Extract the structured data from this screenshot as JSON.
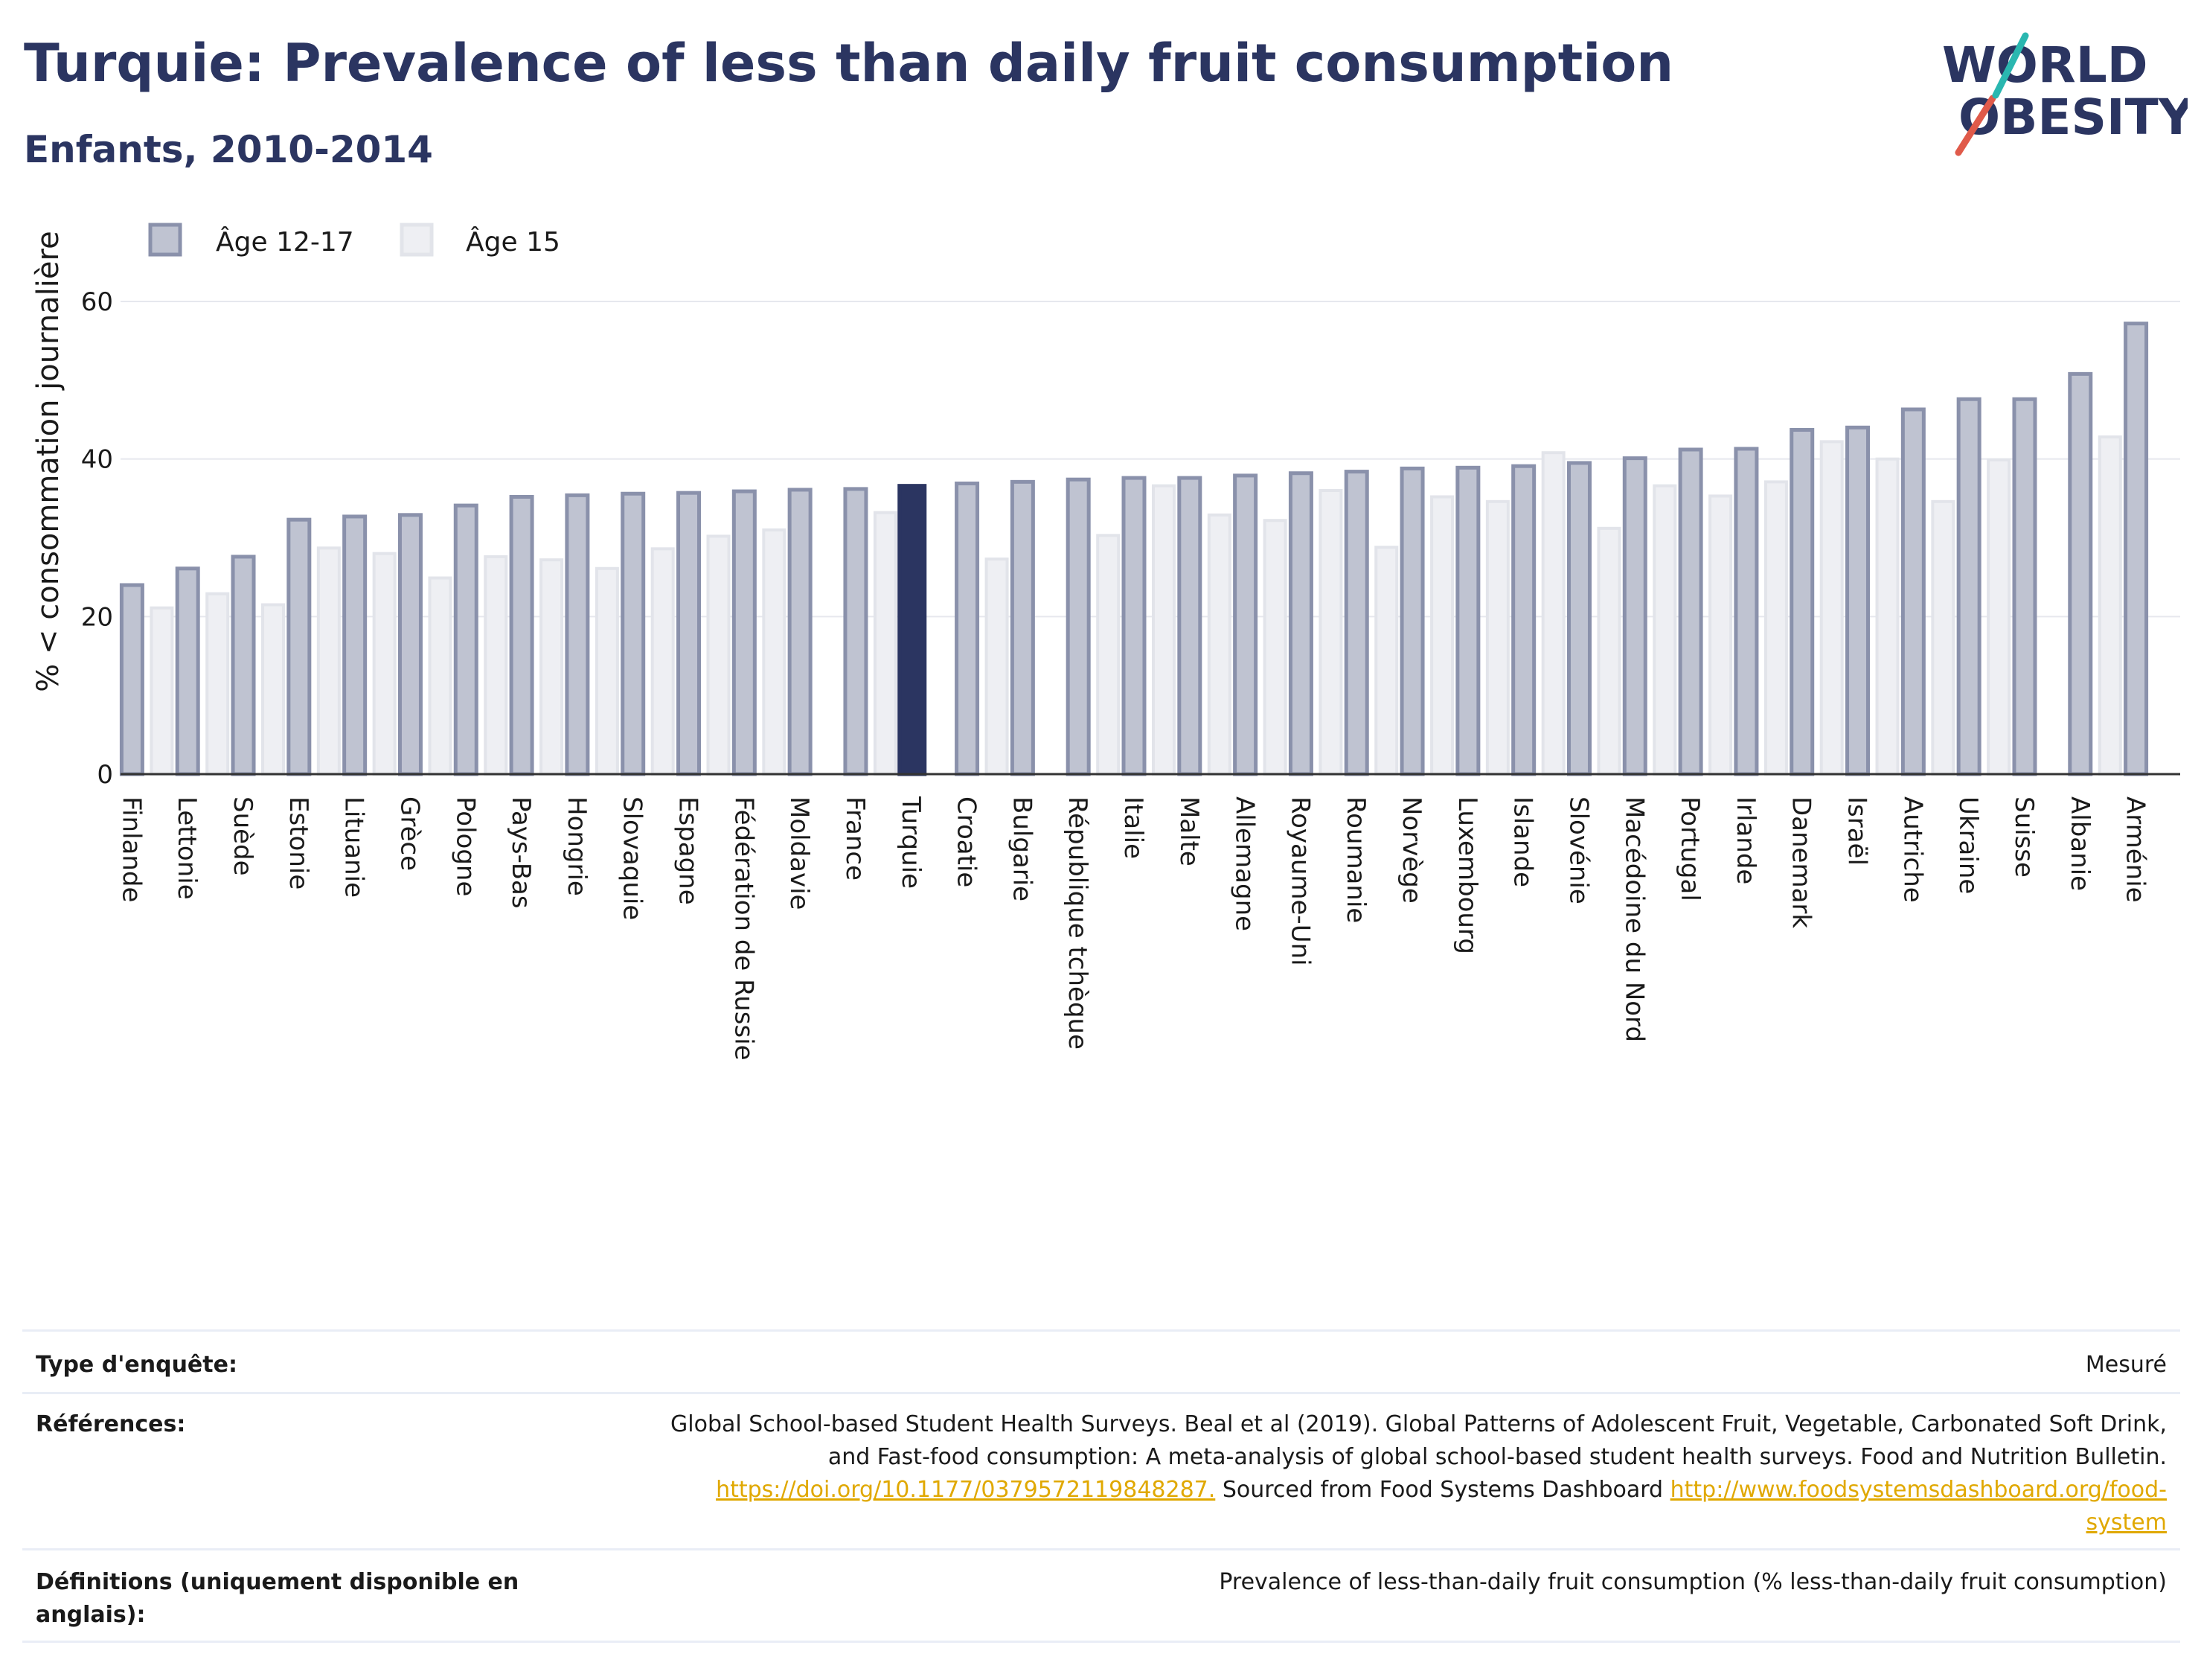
{
  "header": {
    "title": "Turquie: Prevalence of less than daily fruit consumption",
    "subtitle": "Enfants, 2010-2014"
  },
  "logo": {
    "line1": "WORLD",
    "line2": "OBESITY"
  },
  "colors": {
    "series1_fill": "#bfc3d1",
    "series1_stroke": "#8a91ab",
    "series2_fill": "#eeeff3",
    "series2_stroke": "#e2e4ea",
    "highlight": "#2b3561",
    "axis": "#333333",
    "grid": "#e6e8ee"
  },
  "chart_data": {
    "type": "bar",
    "title": "Turquie: Prevalence of less than daily fruit consumption",
    "subtitle": "Enfants, 2010-2014",
    "ylabel": "% < consommation journalière",
    "xlabel": "",
    "ylim": [
      0,
      60
    ],
    "yticks": [
      0,
      20,
      40,
      60
    ],
    "grid": true,
    "legend_position": "top-left",
    "highlight_category": "Turquie",
    "categories": [
      "Finlande",
      "Lettonie",
      "Suède",
      "Estonie",
      "Lituanie",
      "Grèce",
      "Pologne",
      "Pays-Bas",
      "Hongrie",
      "Slovaquie",
      "Espagne",
      "Fédération de Russie",
      "Moldavie",
      "France",
      "Turquie",
      "Croatie",
      "Bulgarie",
      "République tchèque",
      "Italie",
      "Malte",
      "Allemagne",
      "Royaume-Uni",
      "Roumanie",
      "Norvège",
      "Luxembourg",
      "Islande",
      "Slovénie",
      "Macédoine du Nord",
      "Portugal",
      "Irlande",
      "Danemark",
      "Israël",
      "Autriche",
      "Ukraine",
      "Suisse",
      "Albanie",
      "Arménie"
    ],
    "series": [
      {
        "name": "Âge 12-17",
        "values": [
          24.0,
          26.1,
          27.6,
          32.3,
          32.7,
          32.9,
          34.1,
          35.2,
          35.4,
          35.6,
          35.7,
          35.9,
          36.1,
          36.2,
          36.6,
          36.9,
          37.1,
          37.4,
          37.6,
          37.6,
          37.9,
          38.2,
          38.4,
          38.8,
          38.9,
          39.1,
          39.5,
          40.1,
          41.2,
          41.3,
          43.7,
          44.0,
          46.3,
          47.6,
          47.6,
          50.8,
          57.2
        ]
      },
      {
        "name": "Âge 15",
        "values": [
          21.1,
          22.9,
          21.5,
          28.7,
          28.0,
          24.9,
          27.6,
          27.2,
          26.1,
          28.6,
          30.2,
          31.0,
          null,
          33.2,
          null,
          27.3,
          null,
          30.3,
          36.6,
          32.9,
          32.2,
          36.0,
          28.8,
          35.2,
          34.6,
          40.8,
          31.2,
          36.6,
          35.3,
          37.1,
          42.2,
          40.0,
          34.6,
          39.9,
          null,
          42.8,
          null
        ]
      }
    ]
  },
  "meta": {
    "rows": [
      {
        "label": "Type d'enquête:",
        "value": "Mesuré"
      },
      {
        "label": "Références:",
        "value_text": "Global School-based Student Health Surveys. Beal et al (2019). Global Patterns of Adolescent Fruit, Vegetable, Carbonated Soft Drink, and Fast-food consumption: A meta-analysis of global school-based student health surveys. Food and Nutrition Bulletin.",
        "link1": "https://doi.org/10.1177/0379572119848287.",
        "mid_text": " Sourced from Food Systems Dashboard ",
        "link2": "http://www.foodsystemsdashboard.org/food-system"
      },
      {
        "label": "Définitions (uniquement disponible en anglais):",
        "value": "Prevalence of less-than-daily fruit consumption (% less-than-daily fruit consumption)"
      }
    ]
  }
}
